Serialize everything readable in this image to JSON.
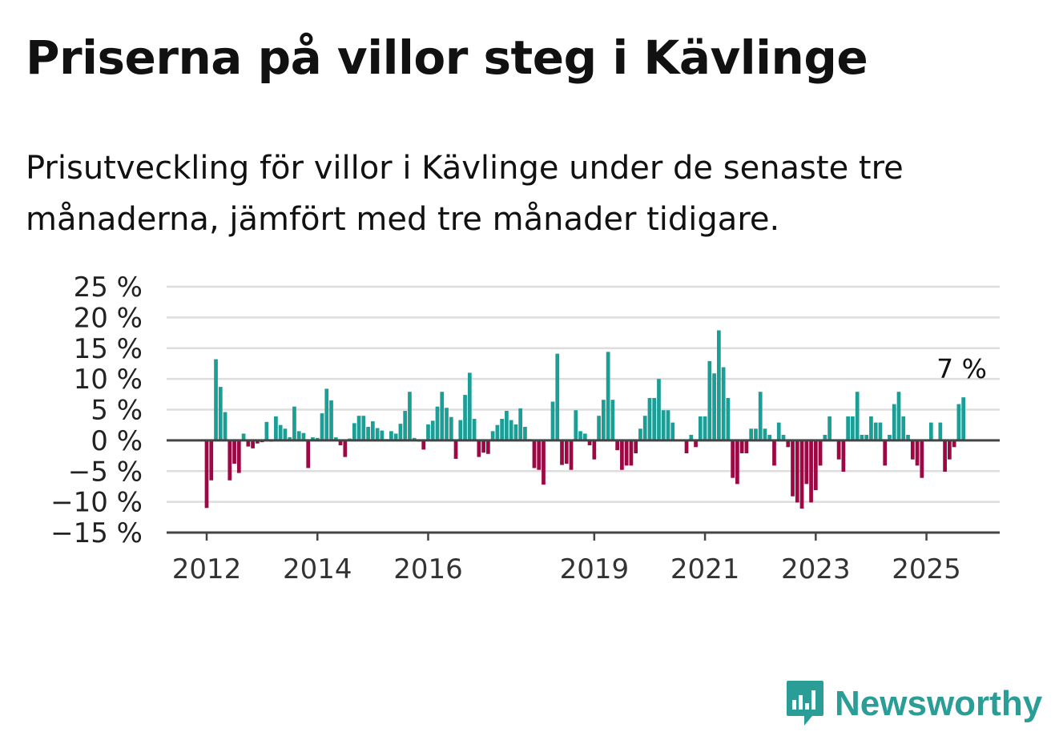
{
  "title": "Priserna på villor steg i Kävlinge",
  "subtitle": "Prisutveckling för villor i Kävlinge under de senaste tre månaderna, jämfört med tre månader tidigare.",
  "brand": "Newsworthy",
  "colors": {
    "positive": "#1a9e96",
    "negative": "#9c0843",
    "grid": "#dddddd",
    "axis": "#444444"
  },
  "chart_data": {
    "type": "bar",
    "title": "Priserna på villor steg i Kävlinge",
    "xlabel": "",
    "ylabel": "",
    "ylim": [
      -15,
      25
    ],
    "y_ticks": [
      25,
      20,
      15,
      10,
      5,
      0,
      -5,
      -10,
      -15
    ],
    "y_tick_labels": [
      "25 %",
      "20 %",
      "15 %",
      "10 %",
      "5 %",
      "0 %",
      "−5 %",
      "−10 %",
      "−15 %"
    ],
    "x_ticks": [
      2012,
      2014,
      2016,
      2019,
      2021,
      2023,
      2025
    ],
    "x_tick_labels": [
      "2012",
      "2014",
      "2016",
      "2019",
      "2021",
      "2023",
      "2025"
    ],
    "grid": true,
    "frequency": "monthly",
    "start": "2012-01",
    "last_value_label": "7 %",
    "values": [
      -11,
      -6.5,
      13.2,
      8.7,
      4.6,
      -6.5,
      -3.8,
      -5.3,
      1.1,
      -1,
      -1.3,
      -0.5,
      -0.3,
      3,
      -0.2,
      3.9,
      2.5,
      1.9,
      0.5,
      5.5,
      1.5,
      1.2,
      -4.5,
      0.5,
      0.4,
      4.4,
      8.4,
      6.5,
      0.5,
      -0.8,
      -2.7,
      0.3,
      2.8,
      4,
      4,
      2.2,
      3.1,
      2,
      1.6,
      0.2,
      1.5,
      1.1,
      2.7,
      4.8,
      7.9,
      0.4,
      -0.2,
      -1.5,
      2.6,
      3.2,
      5.5,
      7.9,
      5.3,
      3.8,
      -3,
      3.3,
      7.4,
      11,
      3.5,
      -2.7,
      -2,
      -2.2,
      1.5,
      2.5,
      3.5,
      4.8,
      3.3,
      2.6,
      5.2,
      2.2,
      0.2,
      -4.5,
      -4.8,
      -7.2,
      -0.1,
      6.3,
      14.1,
      -4,
      -3.8,
      -4.8,
      4.9,
      1.5,
      1.1,
      -0.8,
      -3.1,
      4,
      6.6,
      14.4,
      6.6,
      -1.6,
      -4.8,
      -4.1,
      -4.1,
      -2.1,
      1.9,
      4,
      6.9,
      6.9,
      10,
      4.9,
      4.9,
      2.9,
      -0.1,
      -0.1,
      -2.1,
      0.9,
      -1.1,
      3.9,
      3.9,
      12.9,
      10.9,
      17.9,
      11.9,
      6.9,
      -6.1,
      -7.1,
      -2.1,
      -2.1,
      1.9,
      1.9,
      7.9,
      1.9,
      0.9,
      -4.1,
      2.9,
      0.9,
      -1.1,
      -9.1,
      -10.1,
      -11.1,
      -7.1,
      -10.1,
      -8.1,
      -4.1,
      0.9,
      3.9,
      -0.1,
      -3.1,
      -5.1,
      3.9,
      3.9,
      7.9,
      0.9,
      0.9,
      3.9,
      2.9,
      2.9,
      -4.1,
      0.9,
      5.9,
      7.9,
      3.9,
      0.9,
      -3.1,
      -4.1,
      -6.1,
      -0.1,
      2.9,
      -0.1,
      2.9,
      -5.1,
      -3.1,
      -1.1,
      5.9,
      7
    ]
  }
}
